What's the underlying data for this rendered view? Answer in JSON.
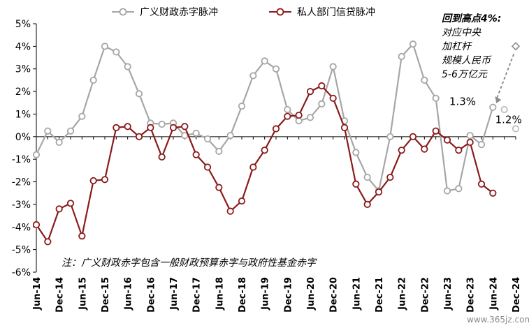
{
  "chart_data": {
    "type": "line",
    "x": [
      "Jun-14",
      "Sep-14",
      "Dec-14",
      "Mar-15",
      "Jun-15",
      "Sep-15",
      "Dec-15",
      "Mar-16",
      "Jun-16",
      "Sep-16",
      "Dec-16",
      "Mar-17",
      "Jun-17",
      "Sep-17",
      "Dec-17",
      "Mar-18",
      "Jun-18",
      "Sep-18",
      "Dec-18",
      "Mar-19",
      "Jun-19",
      "Sep-19",
      "Dec-19",
      "Mar-20",
      "Jun-20",
      "Sep-20",
      "Dec-20",
      "Mar-21",
      "Jun-21",
      "Sep-21",
      "Dec-21",
      "Mar-22",
      "Jun-22",
      "Sep-22",
      "Dec-22",
      "Mar-23",
      "Jun-23",
      "Sep-23",
      "Dec-23",
      "Mar-24",
      "Jun-24",
      "Sep-24",
      "Dec-24"
    ],
    "tick_labels": [
      "Jun-14",
      "Dec-14",
      "Jun-15",
      "Dec-15",
      "Jun-16",
      "Dec-16",
      "Jun-17",
      "Dec-17",
      "Jun-18",
      "Dec-18",
      "Jun-19",
      "Dec-19",
      "Jun-20",
      "Dec-20",
      "Jun-21",
      "Dec-21",
      "Jun-22",
      "Dec-22",
      "Jun-23",
      "Dec-23",
      "Jun-24",
      "Dec-24"
    ],
    "ylim": [
      -6,
      5
    ],
    "yticks": [
      "-6%",
      "-5%",
      "-4%",
      "-3%",
      "-2%",
      "-1%",
      "0%",
      "1%",
      "2%",
      "3%",
      "4%",
      "5%"
    ],
    "series": [
      {
        "name": "广义财政赤字脉冲",
        "color": "#a6a6a6",
        "values": [
          -0.8,
          0.25,
          -0.25,
          0.25,
          0.9,
          2.5,
          4.0,
          3.75,
          3.1,
          1.9,
          0.6,
          0.55,
          0.6,
          0.05,
          0.15,
          -0.1,
          -0.65,
          0.05,
          1.35,
          2.7,
          3.35,
          3.0,
          1.2,
          0.7,
          0.85,
          1.45,
          3.1,
          0.7,
          -0.7,
          -1.8,
          -2.4,
          0.0,
          3.55,
          4.1,
          2.5,
          1.7,
          -2.4,
          -2.3,
          0.05,
          -0.35,
          1.3,
          null,
          null
        ],
        "projection": [
          null,
          null,
          null,
          null,
          null,
          null,
          null,
          null,
          null,
          null,
          null,
          null,
          null,
          null,
          null,
          null,
          null,
          null,
          null,
          null,
          null,
          null,
          null,
          null,
          null,
          null,
          null,
          null,
          null,
          null,
          null,
          null,
          null,
          null,
          null,
          null,
          null,
          null,
          null,
          null,
          1.3,
          1.2,
          0.35
        ]
      },
      {
        "name": "私人部门信贷脉冲",
        "color": "#8b1a1a",
        "values": [
          -3.9,
          -4.65,
          -3.2,
          -2.95,
          -4.4,
          -1.95,
          -1.9,
          0.4,
          0.45,
          0.0,
          0.4,
          -0.9,
          0.4,
          0.45,
          -0.8,
          -1.35,
          -2.25,
          -3.3,
          -2.85,
          -1.35,
          -0.6,
          0.35,
          0.9,
          0.95,
          2.0,
          2.25,
          1.7,
          0.4,
          -2.1,
          -3.0,
          -2.45,
          -1.8,
          -0.6,
          0.0,
          -0.55,
          0.25,
          -0.15,
          -0.6,
          -0.25,
          -2.1,
          -2.5,
          null,
          null
        ]
      }
    ],
    "point_labels": [
      {
        "text": "1.3%",
        "x": "Mar-24",
        "y": 1.55
      },
      {
        "text": "1.2%",
        "x": "Sep-24",
        "y": 0.75
      }
    ],
    "target_point": {
      "x": "Dec-24",
      "y": 4.0,
      "from_x": "Jun-24",
      "from_y": 1.6
    },
    "annotation": [
      "回到高点4%:",
      "对应中央",
      "加杠杆",
      "规模人民币",
      "5-6万亿元"
    ],
    "note": "注：广义财政赤字包含一般财政预算赤字与政府性基金赤字",
    "legend_position": "top",
    "grid": false
  },
  "watermark": "www.365jz.com"
}
